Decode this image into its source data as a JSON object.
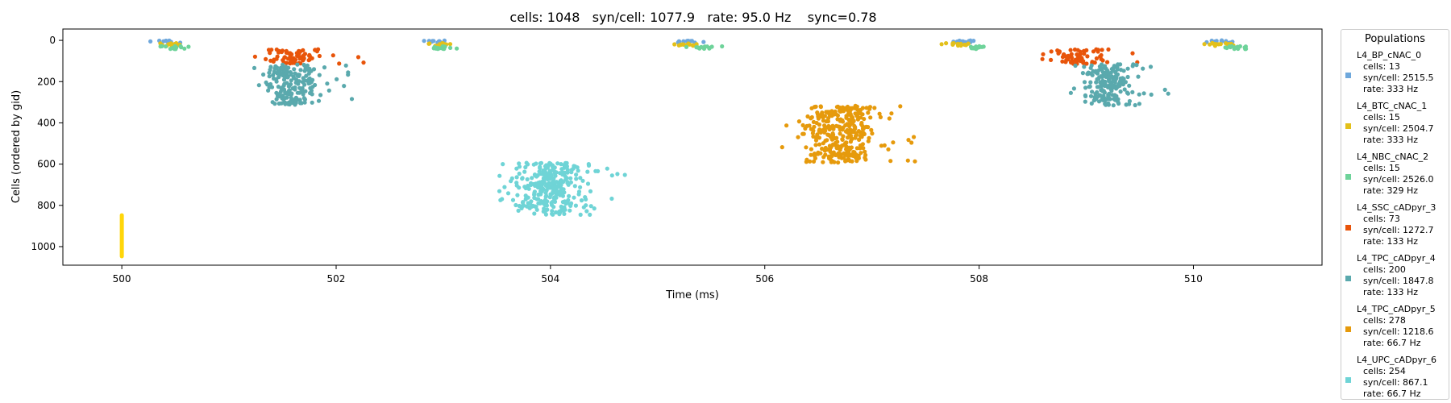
{
  "chart_data": {
    "type": "scatter",
    "title": "cells: 1048   syn/cell: 1077.9   rate: 95.0 Hz    sync=0.78",
    "xlabel": "Time (ms)",
    "ylabel": "Cells (ordered by gid)",
    "xlim": [
      499.45,
      511.2
    ],
    "ylim": [
      1090,
      -55
    ],
    "xticks": [
      500,
      502,
      504,
      506,
      508,
      510
    ],
    "yticks": [
      0,
      200,
      400,
      600,
      800,
      1000
    ],
    "grid": false,
    "legend_title": "Populations",
    "legend_position": "right-outside",
    "series": [
      {
        "name": "L4_BP_cNAC_0",
        "cells": "cells: 13",
        "syn": "syn/cell: 2515.5",
        "rate": "rate: 333 Hz",
        "color": "#6fa8dc",
        "gid_range": [
          0,
          12
        ],
        "bursts": [
          500.42,
          502.9,
          505.3,
          507.86,
          510.28
        ],
        "spread": 0.06,
        "count": 13
      },
      {
        "name": "L4_BTC_cNAC_1",
        "cells": "cells: 15",
        "syn": "syn/cell: 2504.7",
        "rate": "rate: 333 Hz",
        "color": "#e3c01a",
        "gid_range": [
          13,
          27
        ],
        "bursts": [
          500.48,
          502.95,
          505.26,
          507.8,
          510.22
        ],
        "spread": 0.06,
        "count": 15
      },
      {
        "name": "L4_NBC_cNAC_2",
        "cells": "cells: 15",
        "syn": "syn/cell: 2526.0",
        "rate": "rate: 329 Hz",
        "color": "#6ed39a",
        "gid_range": [
          28,
          42
        ],
        "bursts": [
          500.5,
          503.0,
          505.42,
          507.95,
          510.4
        ],
        "spread": 0.05,
        "count": 15
      },
      {
        "name": "L4_SSC_cADpyr_3",
        "cells": "cells: 73",
        "syn": "syn/cell: 1272.7",
        "rate": "rate: 133 Hz",
        "color": "#e8540a",
        "gid_range": [
          43,
          115
        ],
        "bursts": [
          501.6,
          508.95
        ],
        "spread": 0.14,
        "count": 70
      },
      {
        "name": "L4_TPC_cADpyr_4",
        "cells": "cells: 200",
        "syn": "syn/cell: 1847.8",
        "rate": "rate: 133 Hz",
        "color": "#5aa9ad",
        "gid_range": [
          116,
          315
        ],
        "bursts": [
          501.6,
          509.2
        ],
        "spread": 0.12,
        "count": 190
      },
      {
        "name": "L4_TPC_cADpyr_5",
        "cells": "cells: 278",
        "syn": "syn/cell: 1218.6",
        "rate": "rate: 66.7 Hz",
        "color": "#e69a0c",
        "gid_range": [
          316,
          593
        ],
        "bursts": [
          506.7
        ],
        "spread": 0.17,
        "count": 330
      },
      {
        "name": "L4_UPC_cADpyr_6",
        "cells": "cells: 254",
        "syn": "syn/cell: 867.1",
        "rate": "rate: 66.7 Hz",
        "color": "#6fd4d6",
        "gid_range": [
          594,
          847
        ],
        "bursts": [
          504.0
        ],
        "spread": 0.16,
        "count": 300
      }
    ],
    "stimulus": {
      "color": "#ffd60a",
      "x": 500.0,
      "gid_range": [
        848,
        1047
      ]
    }
  }
}
